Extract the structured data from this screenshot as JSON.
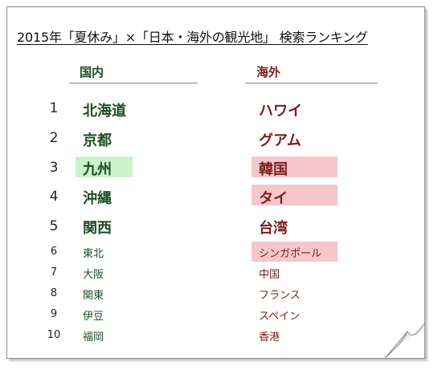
{
  "title": "2015年「夏休み」×「日本・海外の観光地」 検索ランキング",
  "columns": {
    "domestic": "国内",
    "overseas": "海外"
  },
  "colors": {
    "domestic_text": "#1e4d25",
    "overseas_text": "#7a1d1d",
    "domestic_highlight": "#c9f3c8",
    "overseas_highlight": "#f6c6cd"
  },
  "rows": [
    {
      "rank": "1",
      "domestic": "北海道",
      "overseas": "ハワイ"
    },
    {
      "rank": "2",
      "domestic": "京都",
      "overseas": "グアム"
    },
    {
      "rank": "3",
      "domestic": "九州",
      "overseas": "韓国"
    },
    {
      "rank": "4",
      "domestic": "沖縄",
      "overseas": "タイ"
    },
    {
      "rank": "5",
      "domestic": "関西",
      "overseas": "台湾"
    },
    {
      "rank": "6",
      "domestic": "東北",
      "overseas": "シンガポール"
    },
    {
      "rank": "7",
      "domestic": "大阪",
      "overseas": "中国"
    },
    {
      "rank": "8",
      "domestic": "関東",
      "overseas": "フランス"
    },
    {
      "rank": "9",
      "domestic": "伊豆",
      "overseas": "スペイン"
    },
    {
      "rank": "10",
      "domestic": "福岡",
      "overseas": "香港"
    }
  ],
  "highlighted": {
    "domestic": [
      "九州"
    ],
    "overseas": [
      "韓国",
      "タイ",
      "シンガポール"
    ]
  }
}
